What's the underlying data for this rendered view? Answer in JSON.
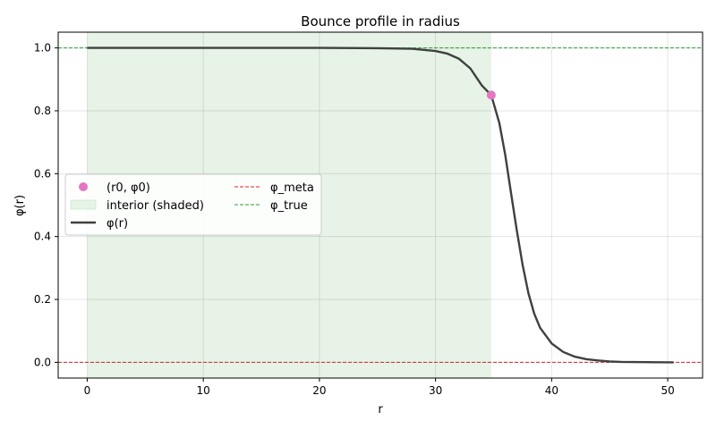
{
  "chart_data": {
    "type": "line",
    "title": "Bounce profile in radius",
    "xlabel": "r",
    "ylabel": "φ(r)",
    "xlim": [
      -2.5,
      53.0
    ],
    "ylim": [
      -0.05,
      1.05
    ],
    "x_ticks": [
      0,
      10,
      20,
      30,
      40,
      50
    ],
    "x_tick_labels": [
      "0",
      "10",
      "20",
      "30",
      "40",
      "50"
    ],
    "y_ticks": [
      0.0,
      0.2,
      0.4,
      0.6,
      0.8,
      1.0
    ],
    "y_tick_labels": [
      "0.0",
      "0.2",
      "0.4",
      "0.6",
      "0.8",
      "1.0"
    ],
    "grid": true,
    "legend_position": "center-left",
    "legend_columns": 2,
    "series": [
      {
        "name": "φ(r)",
        "kind": "line",
        "color": "#404040",
        "x": [
          0,
          5,
          10,
          15,
          20,
          25,
          28,
          30,
          31,
          32,
          33,
          34,
          34.8,
          35.5,
          36,
          36.5,
          37,
          37.5,
          38,
          38.5,
          39,
          40,
          41,
          42,
          43,
          44,
          45,
          46,
          48,
          50.5
        ],
        "y": [
          1.0,
          1.0,
          1.0,
          1.0,
          1.0,
          0.999,
          0.997,
          0.99,
          0.982,
          0.966,
          0.935,
          0.88,
          0.85,
          0.76,
          0.66,
          0.54,
          0.42,
          0.31,
          0.22,
          0.155,
          0.11,
          0.06,
          0.033,
          0.018,
          0.01,
          0.006,
          0.003,
          0.0015,
          0.0005,
          0.0001
        ]
      },
      {
        "name": "(r0, φ0)",
        "kind": "point",
        "color": "#e377c2",
        "x": 34.8,
        "y": 0.85
      },
      {
        "name": "interior (shaded)",
        "kind": "span",
        "color": "#e6f3e6",
        "x_from": 0,
        "x_to": 34.8
      },
      {
        "name": "φ_meta",
        "kind": "hline",
        "color": "#d62728",
        "y": 0.0
      },
      {
        "name": "φ_true",
        "kind": "hline",
        "color": "#2ca02c",
        "y": 1.0
      }
    ],
    "legend": [
      {
        "label": "(r0, φ0)",
        "series": "(r0, φ0)"
      },
      {
        "label": "interior (shaded)",
        "series": "interior (shaded)"
      },
      {
        "label": "φ(r)",
        "series": "φ(r)"
      },
      {
        "label": "φ_meta",
        "series": "φ_meta"
      },
      {
        "label": "φ_true",
        "series": "φ_true"
      }
    ]
  }
}
